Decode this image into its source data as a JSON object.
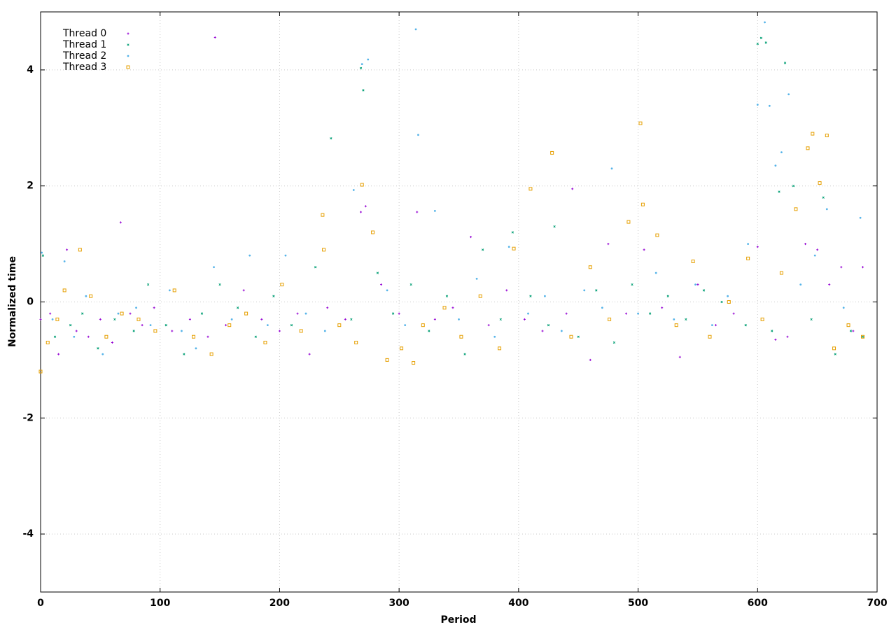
{
  "chart_data": {
    "type": "scatter",
    "x_label": "Period",
    "y_label": "Normalized time",
    "xlim": [
      0,
      700
    ],
    "xticks": [
      0,
      100,
      200,
      300,
      400,
      500,
      600,
      700
    ],
    "ylim": [
      -5,
      5
    ],
    "yticks": [
      -4,
      -2,
      0,
      2,
      4
    ],
    "grid": true,
    "legend": "top-left",
    "series": [
      {
        "name": "Thread 0",
        "color": "#9400d3",
        "marker": "plus",
        "x": [
          0,
          8,
          15,
          22,
          30,
          40,
          50,
          60,
          67,
          75,
          85,
          95,
          110,
          125,
          140,
          146,
          155,
          170,
          185,
          200,
          215,
          225,
          240,
          255,
          268,
          272,
          285,
          300,
          315,
          330,
          345,
          360,
          375,
          390,
          405,
          420,
          440,
          445,
          460,
          475,
          490,
          505,
          520,
          535,
          550,
          565,
          580,
          600,
          615,
          625,
          640,
          650,
          660,
          670,
          680,
          688
        ],
        "values": [
          -0.3,
          -0.2,
          -0.9,
          0.9,
          -0.5,
          -0.6,
          -0.3,
          -0.7,
          1.37,
          -0.2,
          -0.4,
          -0.1,
          -0.5,
          -0.3,
          -0.6,
          4.56,
          -0.4,
          0.2,
          -0.3,
          -0.5,
          -0.2,
          -0.9,
          -0.1,
          -0.3,
          1.55,
          1.65,
          0.3,
          -0.2,
          1.55,
          -0.3,
          -0.1,
          1.12,
          -0.4,
          0.2,
          -0.3,
          -0.5,
          -0.2,
          1.95,
          -1.0,
          1.0,
          -0.2,
          0.9,
          -0.1,
          -0.95,
          0.3,
          -0.4,
          -0.2,
          0.95,
          -0.65,
          -0.6,
          1.0,
          0.9,
          0.3,
          0.6,
          -0.5,
          0.6
        ]
      },
      {
        "name": "Thread 1",
        "color": "#009e73",
        "marker": "cross",
        "x": [
          2,
          12,
          25,
          35,
          48,
          62,
          78,
          90,
          105,
          120,
          135,
          150,
          165,
          180,
          195,
          210,
          230,
          243,
          260,
          268,
          270,
          282,
          295,
          310,
          325,
          340,
          355,
          370,
          385,
          395,
          410,
          425,
          430,
          450,
          465,
          480,
          495,
          510,
          525,
          540,
          555,
          570,
          590,
          600,
          603,
          607,
          612,
          618,
          623,
          630,
          645,
          655,
          665,
          678,
          688
        ],
        "values": [
          0.8,
          -0.6,
          -0.4,
          -0.2,
          -0.8,
          -0.3,
          -0.5,
          0.3,
          -0.4,
          -0.9,
          -0.2,
          0.3,
          -0.1,
          -0.6,
          0.1,
          -0.4,
          0.6,
          2.82,
          -0.3,
          4.03,
          3.65,
          0.5,
          -0.2,
          0.3,
          -0.5,
          0.1,
          -0.9,
          0.9,
          -0.3,
          1.2,
          0.1,
          -0.4,
          1.3,
          -0.6,
          0.2,
          -0.7,
          0.3,
          -0.2,
          0.1,
          -0.3,
          0.2,
          0.0,
          -0.4,
          4.45,
          4.55,
          4.47,
          -0.5,
          1.9,
          4.12,
          2.0,
          -0.3,
          1.8,
          -0.9,
          -0.5,
          -0.6
        ]
      },
      {
        "name": "Thread 2",
        "color": "#56b4e9",
        "marker": "dot",
        "x": [
          1,
          10,
          20,
          28,
          38,
          52,
          65,
          80,
          92,
          108,
          118,
          130,
          145,
          160,
          175,
          190,
          205,
          222,
          238,
          262,
          269,
          274,
          290,
          305,
          314,
          316,
          330,
          350,
          365,
          380,
          392,
          408,
          422,
          436,
          455,
          470,
          478,
          500,
          515,
          530,
          548,
          562,
          575,
          592,
          600,
          606,
          610,
          615,
          620,
          626,
          636,
          648,
          658,
          672,
          686
        ],
        "values": [
          0.85,
          -0.3,
          0.7,
          -0.6,
          0.1,
          -0.9,
          -0.2,
          -0.1,
          -0.4,
          0.2,
          -0.5,
          -0.8,
          0.6,
          -0.3,
          0.8,
          -0.4,
          0.8,
          -0.2,
          -0.5,
          1.93,
          4.1,
          4.18,
          0.2,
          -0.4,
          4.7,
          2.88,
          1.57,
          -0.3,
          0.4,
          -0.6,
          0.95,
          -0.2,
          0.1,
          -0.5,
          0.2,
          -0.1,
          2.3,
          -0.2,
          0.5,
          -0.3,
          0.3,
          -0.4,
          0.1,
          1.0,
          3.4,
          4.82,
          3.38,
          2.35,
          2.58,
          3.58,
          0.3,
          0.8,
          1.6,
          -0.1,
          1.45
        ]
      },
      {
        "name": "Thread 3",
        "color": "#e69f00",
        "marker": "square",
        "x": [
          0,
          6,
          14,
          20,
          33,
          42,
          55,
          68,
          82,
          96,
          112,
          128,
          143,
          158,
          172,
          188,
          202,
          218,
          236,
          237,
          250,
          264,
          269,
          278,
          290,
          302,
          312,
          320,
          338,
          352,
          368,
          384,
          396,
          410,
          428,
          444,
          460,
          476,
          492,
          502,
          504,
          516,
          532,
          546,
          560,
          576,
          592,
          604,
          620,
          632,
          642,
          646,
          652,
          658,
          664,
          676,
          688
        ],
        "values": [
          -1.2,
          -0.7,
          -0.3,
          0.2,
          0.9,
          0.1,
          -0.6,
          -0.2,
          -0.3,
          -0.5,
          0.2,
          -0.6,
          -0.9,
          -0.4,
          -0.2,
          -0.7,
          0.3,
          -0.5,
          1.5,
          0.9,
          -0.4,
          -0.7,
          2.02,
          1.2,
          -1.0,
          -0.8,
          -1.05,
          -0.4,
          -0.1,
          -0.6,
          0.1,
          -0.8,
          0.92,
          1.95,
          2.57,
          -0.6,
          0.6,
          -0.3,
          1.38,
          3.08,
          1.68,
          1.15,
          -0.4,
          0.7,
          -0.6,
          0.0,
          0.75,
          -0.3,
          0.5,
          1.6,
          2.65,
          2.9,
          2.05,
          2.87,
          -0.8,
          -0.4,
          -0.6
        ]
      }
    ]
  }
}
